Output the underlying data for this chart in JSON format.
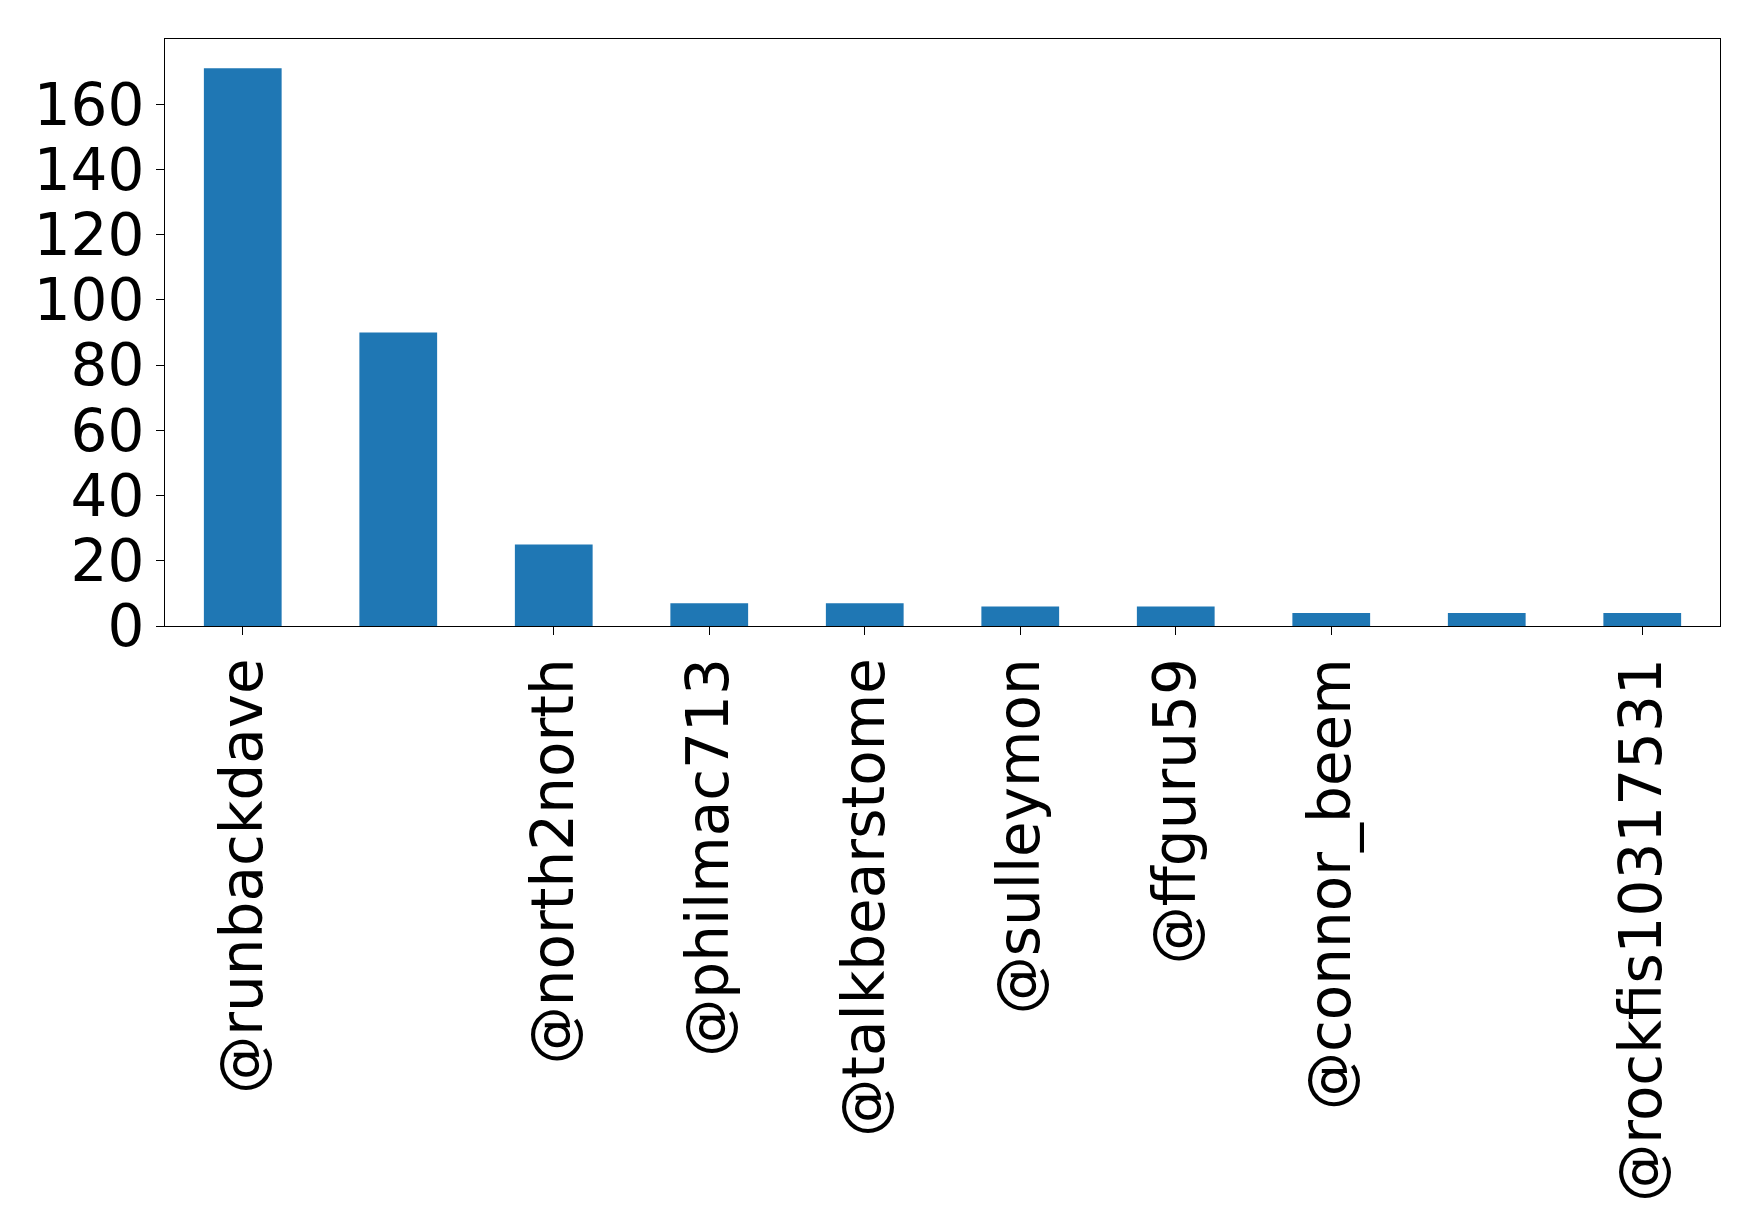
{
  "chart_data": {
    "type": "bar",
    "categories": [
      "@runbackdave",
      null,
      "@north2north",
      "@philmac713",
      "@talkbearstome",
      "@sulleymon",
      "@ffguru59",
      "@connor_beem",
      null,
      "@rockfis10317531"
    ],
    "values": [
      171,
      90,
      25,
      7,
      7,
      6,
      6,
      4,
      4,
      4
    ],
    "color": "#1f77b4",
    "ylim": [
      0,
      180
    ],
    "yticks": [
      0,
      20,
      40,
      60,
      80,
      100,
      120,
      140,
      160
    ]
  }
}
